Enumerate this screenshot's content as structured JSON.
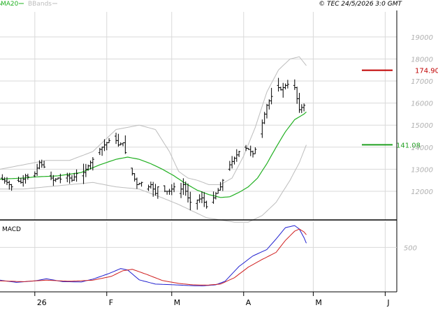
{
  "header": {
    "legend_ma": "MA20",
    "legend_bb": "BBands",
    "copyright": "© TEC 24/5/2026 3:0 GMT"
  },
  "macd_label": "MACD",
  "colors": {
    "ma": "#22b022",
    "bands": "#bdbdbd",
    "price_bar": "#000000",
    "macd_line": "#1f1fd0",
    "signal_line": "#d02020",
    "resistance": "#c00000",
    "support": "#22a022",
    "grid": "#d9d9d9",
    "axis_text": "#b0b0b0"
  },
  "chart_data": [
    {
      "type": "ohlc",
      "title": "",
      "ylim": [
        10700,
        20200
      ],
      "y_ticks": [
        12000,
        13000,
        14000,
        15000,
        16000,
        17000,
        18000,
        19000
      ],
      "y_tick_labels": [
        "12000",
        "13000",
        "14000",
        "15000",
        "16000",
        "17000",
        "18000",
        "19000"
      ],
      "x_ticks": [
        {
          "label": "26",
          "day": 0
        },
        {
          "label": "F",
          "day": 31
        },
        {
          "label": "M",
          "day": 59
        },
        {
          "label": "A",
          "day": 90
        },
        {
          "label": "M",
          "day": 120
        },
        {
          "label": "J",
          "day": 151
        }
      ],
      "x_range_days": [
        -15,
        156
      ],
      "levels": [
        {
          "name": "resistance",
          "value": 17490,
          "label": "174.90"
        },
        {
          "name": "support",
          "value": 14108,
          "label": "141.08"
        }
      ],
      "series": [
        {
          "name": "MA20",
          "key": "ma20"
        },
        {
          "name": "BBands",
          "key": "bbands"
        }
      ],
      "price_anchors": [
        [
          -15,
          12600
        ],
        [
          -12,
          12400
        ],
        [
          -10,
          12200
        ],
        [
          -8,
          12500
        ],
        [
          -6,
          12400
        ],
        [
          -4,
          12700
        ],
        [
          -2,
          12600
        ],
        [
          0,
          12800
        ],
        [
          2,
          13300
        ],
        [
          4,
          13100
        ],
        [
          6,
          12700
        ],
        [
          8,
          12500
        ],
        [
          10,
          12600
        ],
        [
          12,
          12500
        ],
        [
          14,
          12700
        ],
        [
          16,
          12500
        ],
        [
          18,
          12800
        ],
        [
          20,
          12700
        ],
        [
          22,
          13000
        ],
        [
          24,
          13300
        ],
        [
          26,
          13600
        ],
        [
          28,
          13900
        ],
        [
          30,
          14100
        ],
        [
          32,
          14300
        ],
        [
          34,
          14500
        ],
        [
          36,
          14100
        ],
        [
          38,
          14200
        ],
        [
          40,
          13300
        ],
        [
          42,
          12800
        ],
        [
          44,
          12300
        ],
        [
          46,
          12400
        ],
        [
          48,
          12100
        ],
        [
          50,
          12300
        ],
        [
          52,
          11900
        ],
        [
          54,
          12500
        ],
        [
          56,
          12000
        ],
        [
          58,
          12000
        ],
        [
          60,
          12200
        ],
        [
          62,
          11900
        ],
        [
          64,
          12300
        ],
        [
          66,
          11700
        ],
        [
          68,
          11300
        ],
        [
          70,
          11600
        ],
        [
          72,
          11700
        ],
        [
          74,
          11300
        ],
        [
          76,
          11500
        ],
        [
          78,
          11900
        ],
        [
          80,
          12200
        ],
        [
          82,
          12800
        ],
        [
          84,
          13200
        ],
        [
          86,
          13500
        ],
        [
          88,
          13800
        ],
        [
          90,
          14000
        ],
        [
          92,
          13900
        ],
        [
          94,
          13700
        ],
        [
          96,
          14100
        ],
        [
          98,
          15100
        ],
        [
          100,
          15900
        ],
        [
          102,
          16300
        ],
        [
          104,
          16800
        ],
        [
          106,
          16600
        ],
        [
          108,
          16800
        ],
        [
          110,
          16900
        ],
        [
          112,
          16700
        ],
        [
          114,
          15700
        ],
        [
          116,
          15900
        ],
        [
          117,
          16200
        ]
      ],
      "ma_anchors": [
        [
          -15,
          12550
        ],
        [
          -5,
          12600
        ],
        [
          0,
          12650
        ],
        [
          10,
          12700
        ],
        [
          20,
          12850
        ],
        [
          28,
          13200
        ],
        [
          35,
          13450
        ],
        [
          40,
          13550
        ],
        [
          45,
          13450
        ],
        [
          50,
          13250
        ],
        [
          55,
          13000
        ],
        [
          60,
          12700
        ],
        [
          65,
          12350
        ],
        [
          70,
          12050
        ],
        [
          75,
          11850
        ],
        [
          80,
          11720
        ],
        [
          84,
          11750
        ],
        [
          88,
          11950
        ],
        [
          92,
          12200
        ],
        [
          96,
          12600
        ],
        [
          100,
          13250
        ],
        [
          104,
          14000
        ],
        [
          108,
          14700
        ],
        [
          112,
          15250
        ],
        [
          116,
          15500
        ],
        [
          117,
          15600
        ]
      ],
      "upper_band_anchors": [
        [
          -15,
          13000
        ],
        [
          -5,
          13200
        ],
        [
          5,
          13400
        ],
        [
          15,
          13400
        ],
        [
          25,
          13800
        ],
        [
          35,
          14800
        ],
        [
          45,
          15000
        ],
        [
          52,
          14800
        ],
        [
          58,
          13800
        ],
        [
          62,
          12900
        ],
        [
          66,
          12600
        ],
        [
          70,
          12500
        ],
        [
          75,
          12300
        ],
        [
          80,
          12300
        ],
        [
          85,
          12600
        ],
        [
          90,
          13600
        ],
        [
          95,
          14900
        ],
        [
          100,
          16500
        ],
        [
          105,
          17500
        ],
        [
          110,
          18000
        ],
        [
          114,
          18100
        ],
        [
          117,
          17700
        ]
      ],
      "lower_band_anchors": [
        [
          -15,
          12100
        ],
        [
          -5,
          12100
        ],
        [
          5,
          12200
        ],
        [
          15,
          12300
        ],
        [
          25,
          12400
        ],
        [
          35,
          12200
        ],
        [
          45,
          12100
        ],
        [
          55,
          11700
        ],
        [
          62,
          11400
        ],
        [
          68,
          11100
        ],
        [
          74,
          10800
        ],
        [
          80,
          10700
        ],
        [
          86,
          10600
        ],
        [
          92,
          10600
        ],
        [
          98,
          10900
        ],
        [
          104,
          11500
        ],
        [
          110,
          12500
        ],
        [
          114,
          13300
        ],
        [
          117,
          14100
        ]
      ]
    },
    {
      "type": "line",
      "title": "MACD",
      "ylim": [
        -130,
        860
      ],
      "y_ticks": [
        500
      ],
      "y_tick_labels": [
        "500"
      ],
      "series": [
        {
          "name": "MACD",
          "key": "macd",
          "anchors": [
            [
              -15,
              35
            ],
            [
              -8,
              5
            ],
            [
              0,
              25
            ],
            [
              5,
              55
            ],
            [
              12,
              15
            ],
            [
              20,
              10
            ],
            [
              25,
              50
            ],
            [
              32,
              130
            ],
            [
              37,
              200
            ],
            [
              40,
              180
            ],
            [
              45,
              40
            ],
            [
              52,
              -20
            ],
            [
              60,
              -30
            ],
            [
              66,
              -40
            ],
            [
              72,
              -45
            ],
            [
              78,
              -30
            ],
            [
              82,
              20
            ],
            [
              88,
              230
            ],
            [
              94,
              380
            ],
            [
              100,
              470
            ],
            [
              104,
              620
            ],
            [
              108,
              780
            ],
            [
              112,
              810
            ],
            [
              114,
              760
            ],
            [
              116,
              640
            ],
            [
              117,
              560
            ]
          ]
        },
        {
          "name": "Signal",
          "key": "signal",
          "anchors": [
            [
              -15,
              25
            ],
            [
              -5,
              15
            ],
            [
              5,
              35
            ],
            [
              15,
              20
            ],
            [
              25,
              35
            ],
            [
              33,
              90
            ],
            [
              38,
              170
            ],
            [
              42,
              190
            ],
            [
              48,
              120
            ],
            [
              55,
              30
            ],
            [
              62,
              -10
            ],
            [
              68,
              -30
            ],
            [
              74,
              -35
            ],
            [
              80,
              -20
            ],
            [
              86,
              70
            ],
            [
              92,
              220
            ],
            [
              98,
              330
            ],
            [
              104,
              430
            ],
            [
              108,
              600
            ],
            [
              112,
              730
            ],
            [
              114,
              760
            ],
            [
              116,
              720
            ],
            [
              117,
              680
            ]
          ]
        }
      ]
    }
  ]
}
